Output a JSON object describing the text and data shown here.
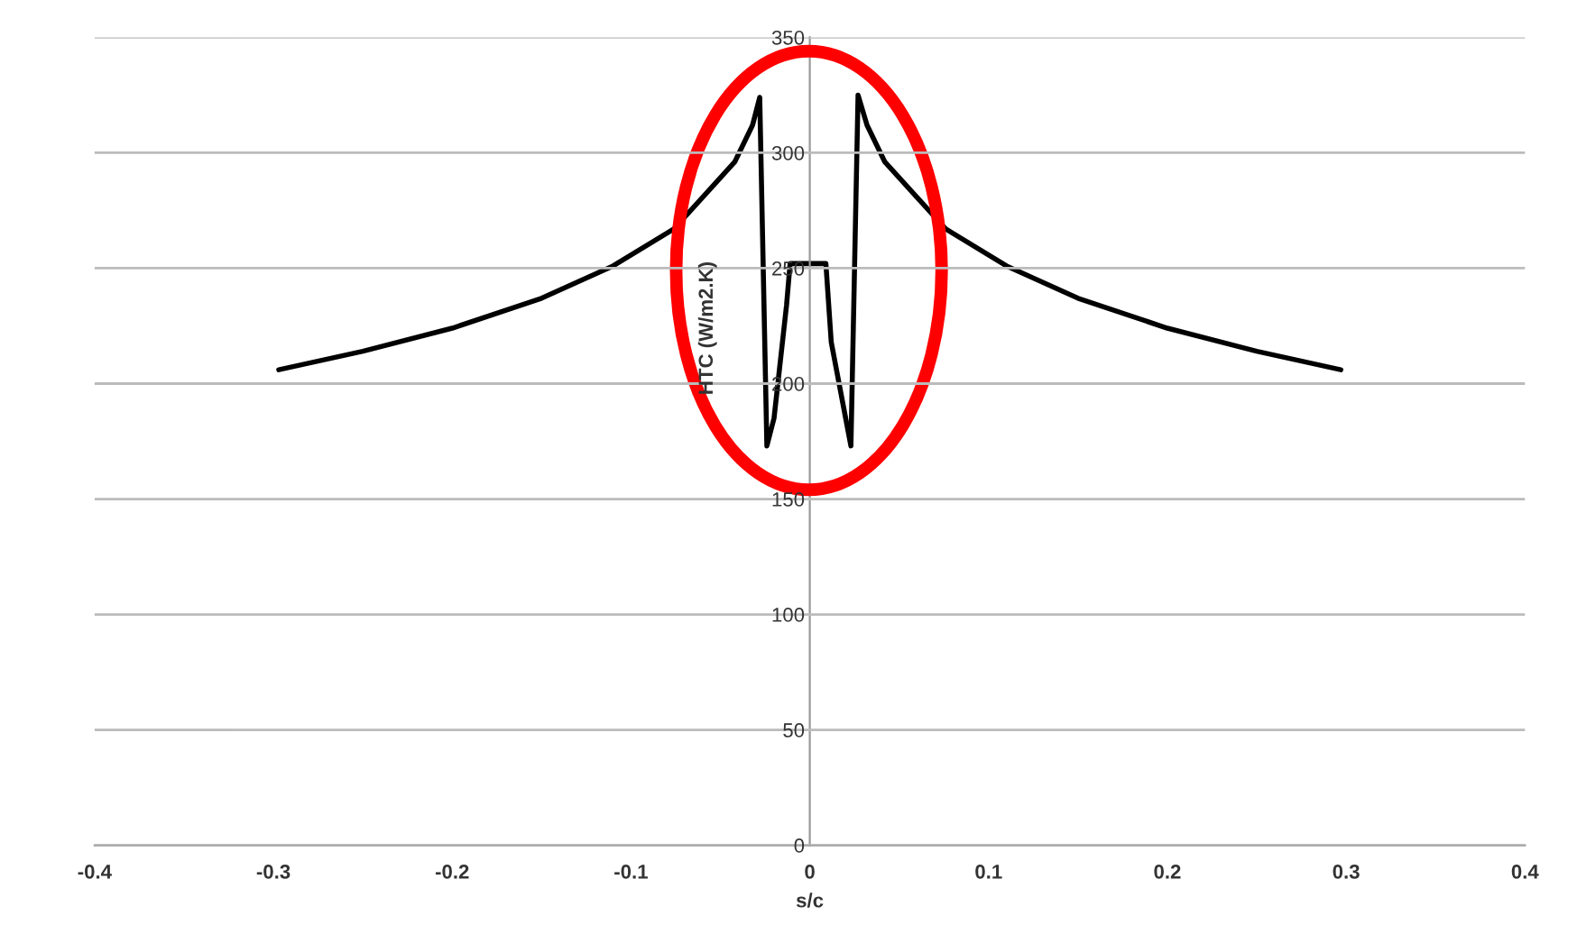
{
  "chart_data": {
    "type": "line",
    "xlabel": "s/c",
    "ylabel": "HTC (W/m2.K)",
    "xlim": [
      -0.4,
      0.4
    ],
    "xticks": [
      {
        "value": -0.4,
        "label": "-0.4"
      },
      {
        "value": -0.3,
        "label": "-0.3"
      },
      {
        "value": -0.2,
        "label": "-0.2"
      },
      {
        "value": -0.1,
        "label": "-0.1"
      },
      {
        "value": 0,
        "label": "0"
      },
      {
        "value": 0.1,
        "label": "0.1"
      },
      {
        "value": 0.2,
        "label": "0.2"
      },
      {
        "value": 0.3,
        "label": "0.3"
      },
      {
        "value": 0.4,
        "label": "0.4"
      }
    ],
    "ylim": [
      0,
      350
    ],
    "yticks": [
      0,
      50,
      100,
      150,
      200,
      250,
      300,
      350
    ],
    "grid": "y",
    "marker": "none",
    "line_style": "solid",
    "series": [
      {
        "color": "#000000",
        "x": [
          -0.297,
          -0.25,
          -0.2,
          -0.15,
          -0.11,
          -0.076,
          -0.042,
          -0.032,
          -0.028,
          -0.024,
          -0.02,
          -0.013,
          -0.011,
          0.009,
          0.012,
          0.023,
          0.027,
          0.032,
          0.042,
          0.076,
          0.11,
          0.15,
          0.2,
          0.25,
          0.297
        ],
        "values": [
          206,
          214,
          224,
          237,
          251,
          267,
          296,
          312,
          324,
          173,
          185,
          234,
          252,
          252,
          218,
          173,
          325,
          312,
          296,
          267,
          251,
          237,
          224,
          214,
          206
        ]
      }
    ]
  }
}
